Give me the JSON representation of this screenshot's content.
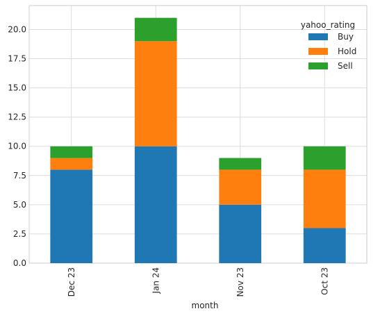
{
  "chart_data": {
    "type": "bar",
    "stacked": true,
    "categories": [
      "Dec 23",
      "Jan 24",
      "Nov 23",
      "Oct 23"
    ],
    "series": [
      {
        "name": "Buy",
        "values": [
          8,
          10,
          5,
          3
        ],
        "color": "#1f77b4"
      },
      {
        "name": "Hold",
        "values": [
          1,
          9,
          3,
          5
        ],
        "color": "#ff7f0e"
      },
      {
        "name": "Sell",
        "values": [
          1,
          2,
          1,
          2
        ],
        "color": "#2ca02c"
      }
    ],
    "xlabel": "month",
    "ylabel": "",
    "ylim": [
      0,
      22.05
    ],
    "yticks": [
      "0.0",
      "2.5",
      "5.0",
      "7.5",
      "10.0",
      "12.5",
      "15.0",
      "17.5",
      "20.0"
    ],
    "ytick_values": [
      0,
      2.5,
      5,
      7.5,
      10,
      12.5,
      15,
      17.5,
      20
    ],
    "legend_title": "yahoo_rating",
    "legend_position": "upper right",
    "grid": true,
    "x_tick_rotation": "vertical"
  }
}
